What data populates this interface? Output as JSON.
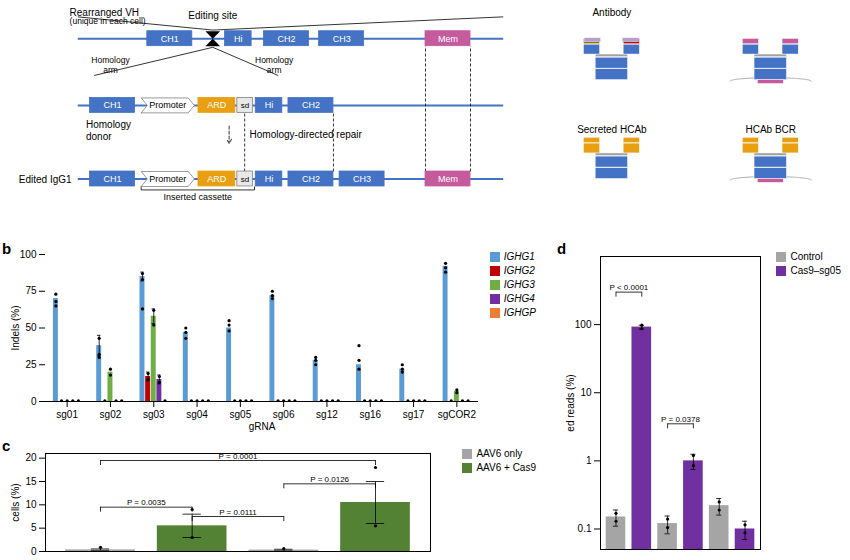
{
  "chart_data": [
    {
      "type": "diagram",
      "annotations": [
        "Rearranged VH",
        "(unique in each cell)",
        "Editing site",
        "CH1",
        "Hi",
        "CH2",
        "CH3",
        "Mem",
        "Homology\narm",
        "Homology\narm",
        "Homology\ndonor",
        "CH1",
        "Promoter",
        "ARD",
        "sd",
        "Hi",
        "CH2",
        "Homology-directed repair",
        "Edited IgG1",
        "CH1",
        "Promoter",
        "ARD",
        "sd",
        "Hi",
        "CH2",
        "CH3",
        "Mem",
        "Inserted cassette"
      ],
      "colors": [
        "#4472c4",
        "#c55a9d",
        "#e8a012",
        "#ffffff",
        "#e8e8e8"
      ]
    },
    {
      "type": "diagram",
      "annotations": [
        "Antibody",
        "Secreted HCAb",
        "HCAb BCR"
      ],
      "colors": [
        "#4472c4",
        "#e8a012",
        "#c55a9d",
        "#c00000",
        "#9c6b00",
        "#b4a0c8",
        "#a0a0a0"
      ]
    },
    {
      "type": "bar",
      "title": "b",
      "xlabel": "gRNA",
      "ylabel": "Indels (%)",
      "categories": [
        "sg01",
        "sg02",
        "sg03",
        "sg04",
        "sg05",
        "sg06",
        "sg12",
        "sg16",
        "sg17",
        "sgCOR2"
      ],
      "series": [
        {
          "name": "IGHG1",
          "color": "#5b9bd5",
          "values": [
            70,
            38,
            85,
            47,
            50,
            72,
            28,
            25,
            22,
            92
          ],
          "errors": [
            null,
            7,
            3,
            null,
            null,
            null,
            null,
            null,
            null,
            null
          ],
          "points": [
            [
              73,
              68,
              65
            ],
            [
              43,
              32,
              30
            ],
            [
              87,
              83,
              63
            ],
            [
              50,
              47,
              43
            ],
            [
              55,
              52,
              48
            ],
            [
              75,
              72,
              70
            ],
            [
              30,
              28,
              25
            ],
            [
              38,
              28,
              22
            ],
            [
              25,
              22,
              20
            ],
            [
              94,
              91,
              88
            ]
          ]
        },
        {
          "name": "IGHG2",
          "color": "#c00000",
          "values": [
            0,
            0,
            17,
            0,
            0,
            0,
            0,
            0,
            0,
            0
          ],
          "errors": [
            null,
            null,
            3,
            null,
            null,
            null,
            null,
            null,
            null,
            null
          ],
          "points": [
            [
              0.5
            ],
            [
              0.5
            ],
            [
              19,
              15
            ],
            [
              0.5
            ],
            [
              0.5
            ],
            [
              0.5
            ],
            [
              0.5
            ],
            [
              0.5
            ],
            [
              0.5
            ],
            [
              0.5
            ]
          ]
        },
        {
          "name": "IGHG3",
          "color": "#70ad47",
          "values": [
            0,
            20,
            58,
            0,
            0,
            0,
            0,
            0,
            0,
            7
          ],
          "errors": [
            null,
            null,
            5,
            null,
            null,
            null,
            null,
            null,
            null,
            null
          ],
          "points": [
            [
              0.5
            ],
            [
              22,
              18
            ],
            [
              62,
              52
            ],
            [
              0.5
            ],
            [
              0.5
            ],
            [
              0.5
            ],
            [
              0.5
            ],
            [
              0.5
            ],
            [
              0.5
            ],
            [
              8,
              6
            ]
          ]
        },
        {
          "name": "IGHG4",
          "color": "#7030a0",
          "values": [
            0,
            0,
            15,
            0,
            0,
            0,
            0,
            0,
            0,
            0
          ],
          "errors": [
            null,
            null,
            3,
            null,
            null,
            null,
            null,
            null,
            null,
            null
          ],
          "points": [
            [
              0.5
            ],
            [
              0.5
            ],
            [
              17,
              13
            ],
            [
              0.5
            ],
            [
              0.5
            ],
            [
              0.5
            ],
            [
              0.5
            ],
            [
              0.5
            ],
            [
              0.5
            ],
            [
              0.5
            ]
          ]
        },
        {
          "name": "IGHGP",
          "color": "#ed7d31",
          "values": [
            0,
            0,
            0,
            0,
            0,
            0,
            0,
            0,
            0,
            0
          ],
          "points": [
            [
              0.5
            ],
            [
              0.5
            ],
            [
              0.5
            ],
            [
              0.5
            ],
            [
              0.5
            ],
            [
              0.5
            ],
            [
              0.5
            ],
            [
              0.5
            ],
            [
              0.5
            ],
            [
              0.5
            ]
          ]
        }
      ],
      "ylim": [
        0,
        100
      ],
      "yticks": [
        0,
        25,
        50,
        75,
        100
      ],
      "legend": "upper right"
    },
    {
      "type": "bar",
      "title": "c",
      "ylabel": "cells (%)",
      "categories": [
        null,
        null,
        null,
        null
      ],
      "series": [
        {
          "name": "AAV6 only",
          "color": "#a5a5a5",
          "values": [
            0.35,
            null,
            0.3,
            null
          ],
          "errors": [
            0.2,
            null,
            0.18,
            null
          ],
          "points": [
            [
              0.9
            ],
            [],
            [
              0.6
            ],
            []
          ]
        },
        {
          "name": "AAV6 + Cas9",
          "color": "#548235",
          "values": [
            null,
            5.5,
            null,
            10.5
          ],
          "errors": [
            null,
            2.5,
            null,
            4.5
          ],
          "points": [
            [],
            [
              9.0,
              3.0
            ],
            [],
            [
              18.0,
              5.5
            ]
          ]
        }
      ],
      "ylim": [
        0,
        21
      ],
      "yticks": [
        0,
        5,
        10,
        15,
        20
      ],
      "tick_labels": "y",
      "legend": "upper right",
      "annotations": [
        {
          "text": "P = 0.0035",
          "x1": 0,
          "x2": 1,
          "y": 9.5
        },
        {
          "text": "P = 0.0111",
          "x1": 1,
          "x2": 2,
          "y": 7.5
        },
        {
          "text": "P = 0.0001",
          "x1": 0,
          "x2": 3,
          "y": 19.5
        },
        {
          "text": "P = 0.0126",
          "x1": 2,
          "x2": 3,
          "y": 14.5
        }
      ]
    },
    {
      "type": "bar",
      "title": "d",
      "ylabel": "ed reads (%)",
      "log": "y",
      "categories": [
        null,
        null,
        null,
        null,
        null,
        null
      ],
      "series": [
        {
          "name": "Control",
          "color": "#a5a5a5",
          "values": [
            0.15,
            null,
            0.12,
            null,
            0.22,
            null
          ],
          "errors": [
            0.04,
            null,
            0.035,
            null,
            0.06,
            null
          ],
          "points": [
            [
              0.17,
              0.13
            ],
            [],
            [
              0.14,
              0.105
            ],
            [],
            [
              0.25,
              0.19
            ],
            []
          ]
        },
        {
          "name": "Cas9–sg05",
          "color": "#7030a0",
          "values": [
            null,
            92,
            null,
            1.0,
            null,
            0.1
          ],
          "errors": [
            null,
            6,
            null,
            0.25,
            null,
            0.03
          ],
          "points": [
            [],
            [
              98,
              87
            ],
            [],
            [
              1.2,
              0.85
            ],
            [],
            [
              0.115,
              0.088
            ]
          ]
        }
      ],
      "ylim": [
        0.05,
        1000
      ],
      "yticks": [
        0.1,
        1,
        10,
        100
      ],
      "tick_labels": "y",
      "legend": "upper right",
      "annotations": [
        {
          "text": "P < 0.0001",
          "x1": 0,
          "x2": 1,
          "y": 300
        },
        {
          "text": "P = 0.0378",
          "x1": 2,
          "x2": 3,
          "y": 3.5
        }
      ]
    }
  ]
}
